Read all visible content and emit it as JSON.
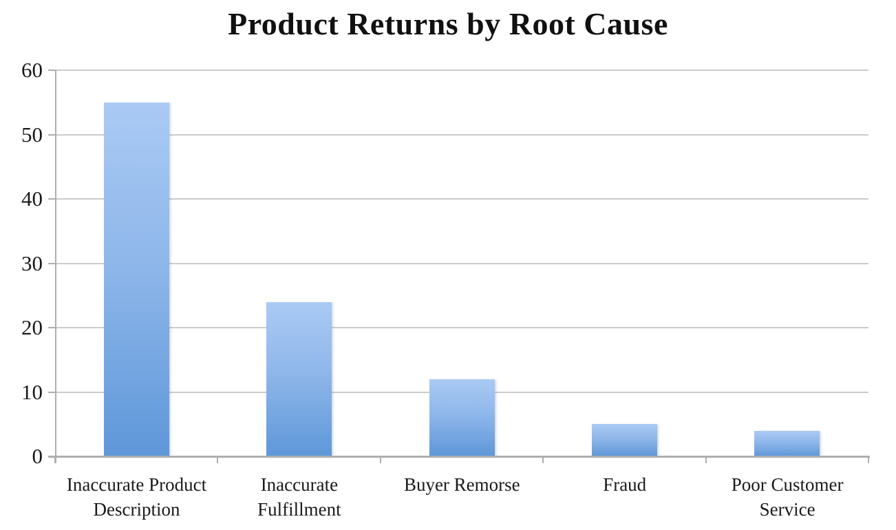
{
  "chart_data": {
    "type": "bar",
    "title": "Product Returns by Root Cause",
    "categories": [
      "Inaccurate Product Description",
      "Inaccurate Fulfillment",
      "Buyer Remorse",
      "Fraud",
      "Poor Customer Service"
    ],
    "values": [
      55,
      24,
      12,
      5,
      4
    ],
    "xlabel": "",
    "ylabel": "",
    "ylim": [
      0,
      60
    ],
    "yticks": [
      0,
      10,
      20,
      30,
      40,
      50,
      60
    ],
    "grid": true,
    "legend": false,
    "colors": {
      "bar_gradient_top": "#aacaf4",
      "bar_gradient_bottom": "#5e97d9",
      "gridline": "#cbcbcb",
      "axis": "#aeaeae",
      "text": "#1a1a1a",
      "background": "#ffffff"
    }
  }
}
